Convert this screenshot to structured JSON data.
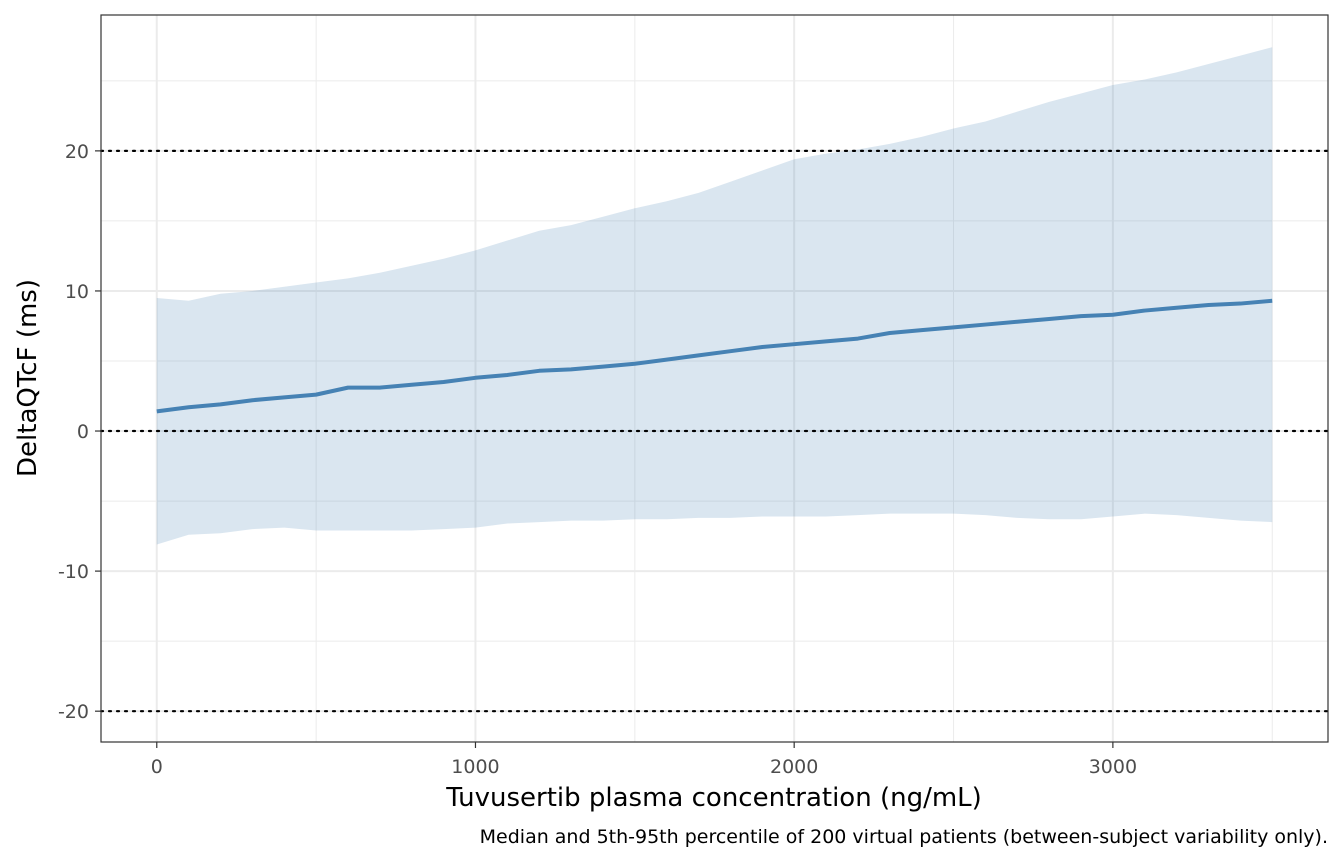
{
  "chart_data": {
    "type": "line",
    "title": "",
    "xlabel": "Tuvusertib plasma concentration (ng/mL)",
    "ylabel": "DeltaQTcF (ms)",
    "caption": "Median and 5th-95th percentile of 200 virtual patients (between-subject variability only).",
    "xlim": [
      -175,
      3675
    ],
    "ylim": [
      -22.2,
      29.7
    ],
    "x_ticks": [
      0,
      1000,
      2000,
      3000
    ],
    "x_tick_labels": [
      "0",
      "1000",
      "2000",
      "3000"
    ],
    "y_ticks": [
      -20,
      -10,
      0,
      10,
      20
    ],
    "y_tick_labels": [
      "-20",
      "-10",
      "0",
      "10",
      "20"
    ],
    "reference_lines": [
      -20,
      0,
      20
    ],
    "grid": true,
    "x": [
      0,
      100,
      200,
      300,
      400,
      500,
      600,
      700,
      800,
      900,
      1000,
      1100,
      1200,
      1300,
      1400,
      1500,
      1600,
      1700,
      1800,
      1900,
      2000,
      2100,
      2200,
      2300,
      2400,
      2500,
      2600,
      2700,
      2800,
      2900,
      3000,
      3100,
      3200,
      3300,
      3400,
      3500
    ],
    "series": [
      {
        "name": "Median",
        "values": [
          1.4,
          1.7,
          1.9,
          2.2,
          2.4,
          2.6,
          3.1,
          3.1,
          3.3,
          3.5,
          3.8,
          4.0,
          4.3,
          4.4,
          4.6,
          4.8,
          5.1,
          5.4,
          5.7,
          6.0,
          6.2,
          6.4,
          6.6,
          7.0,
          7.2,
          7.4,
          7.6,
          7.8,
          8.0,
          8.2,
          8.3,
          8.6,
          8.8,
          9.0,
          9.1,
          9.3
        ]
      },
      {
        "name": "5th percentile",
        "values": [
          -8.1,
          -7.4,
          -7.3,
          -7.0,
          -6.9,
          -7.1,
          -7.1,
          -7.1,
          -7.1,
          -7.0,
          -6.9,
          -6.6,
          -6.5,
          -6.4,
          -6.4,
          -6.3,
          -6.3,
          -6.2,
          -6.2,
          -6.1,
          -6.1,
          -6.1,
          -6.0,
          -5.9,
          -5.9,
          -5.9,
          -6.0,
          -6.2,
          -6.3,
          -6.3,
          -6.1,
          -5.9,
          -6.0,
          -6.2,
          -6.4,
          -6.5
        ]
      },
      {
        "name": "95th percentile",
        "values": [
          9.5,
          9.3,
          9.8,
          10.0,
          10.3,
          10.6,
          10.9,
          11.3,
          11.8,
          12.3,
          12.9,
          13.6,
          14.3,
          14.7,
          15.3,
          15.9,
          16.4,
          17.0,
          17.8,
          18.6,
          19.4,
          19.8,
          20.1,
          20.5,
          21.0,
          21.6,
          22.1,
          22.8,
          23.5,
          24.1,
          24.7,
          25.1,
          25.6,
          26.2,
          26.8,
          27.4
        ]
      }
    ],
    "colors": {
      "median_line": "#4682b4",
      "ribbon": "#dae6f0",
      "reference_line": "#000000",
      "grid": "#ebebeb",
      "panel_border": "#333333"
    }
  }
}
